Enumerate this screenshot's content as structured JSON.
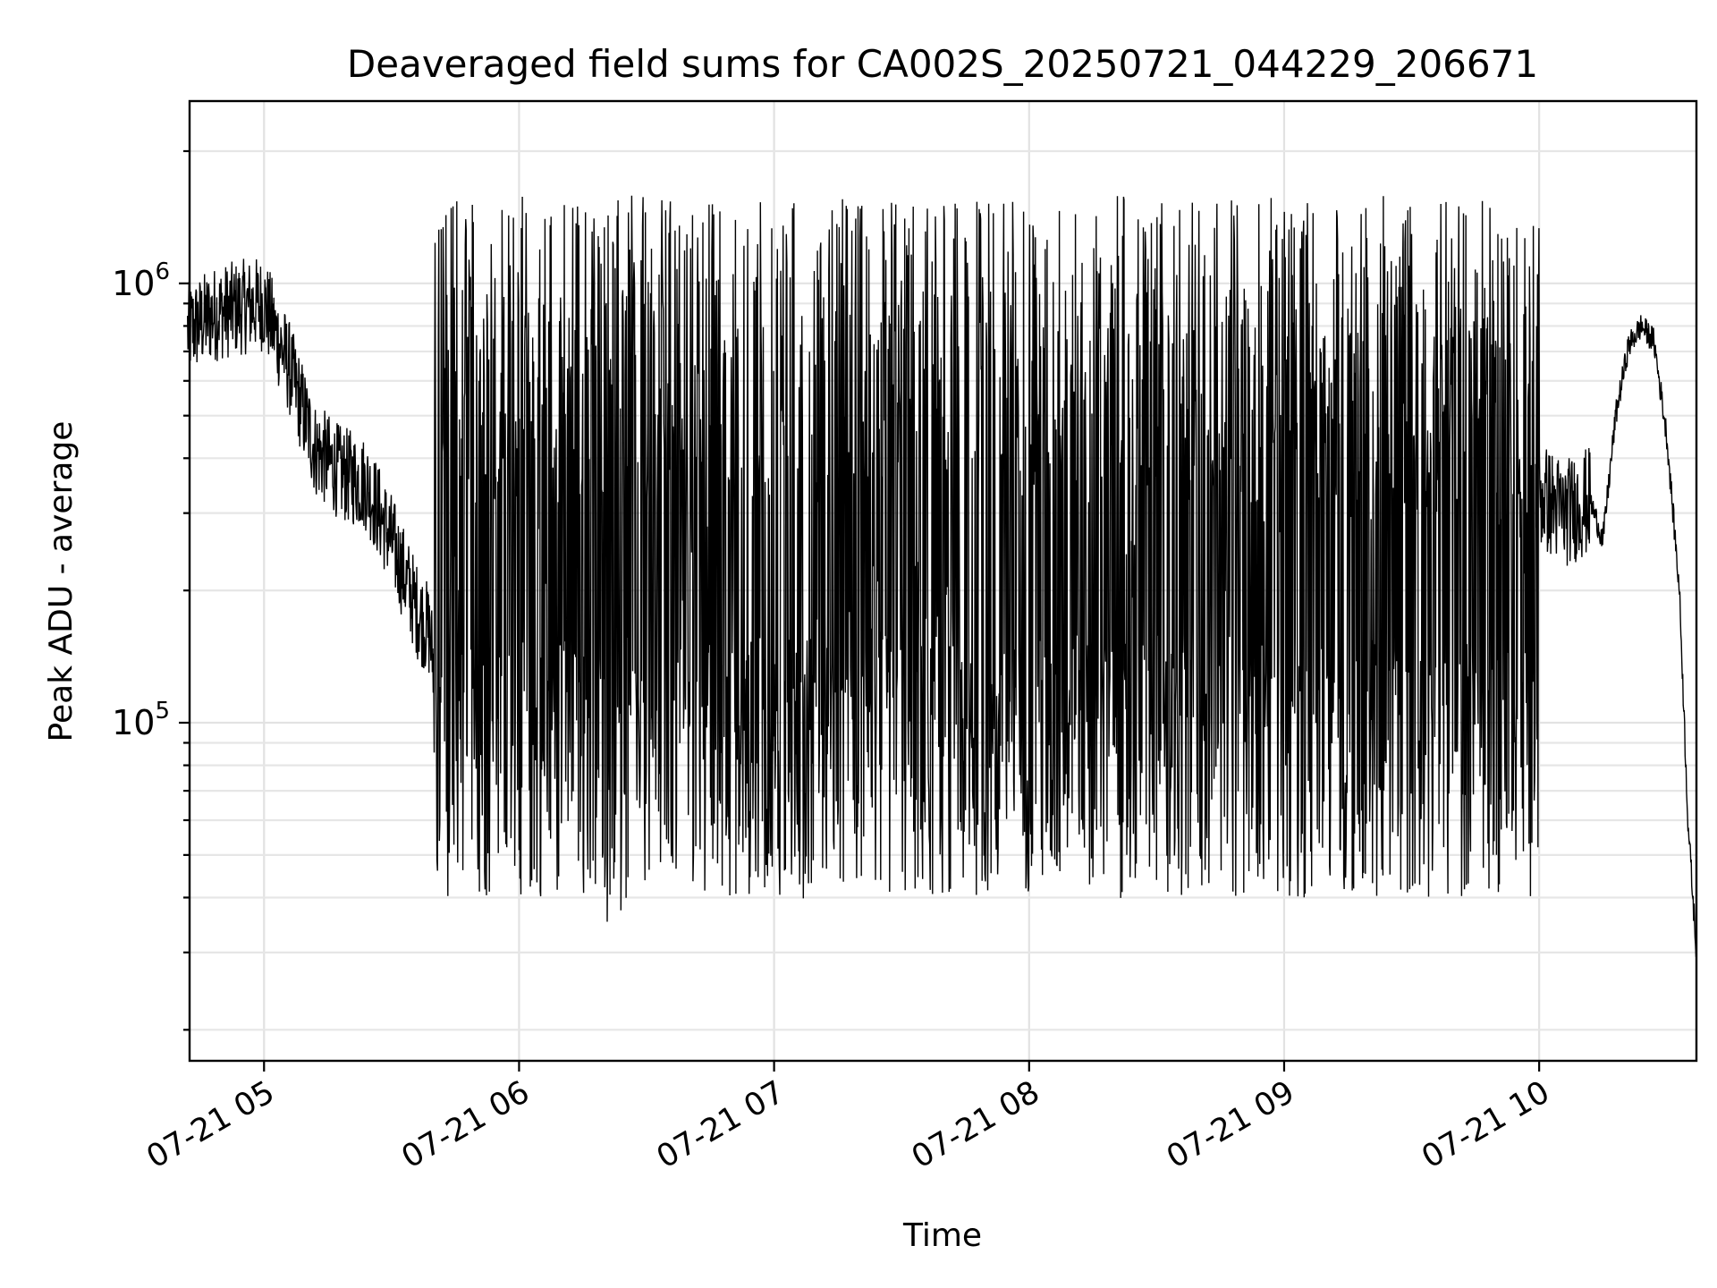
{
  "chart_data": {
    "type": "line",
    "title": "Deaveraged field sums for CA002S_20250721_044229_206671",
    "xlabel": "Time",
    "ylabel": "Peak ADU - average",
    "yscale": "log",
    "grid": true,
    "line_color": "#000000",
    "x_range": [
      "2025-07-21 04:42:29",
      "2025-07-21 10:37:00"
    ],
    "ylim": [
      17000,
      2600000
    ],
    "x_ticks": [
      {
        "label": "07-21 05",
        "time": "2025-07-21 05:00"
      },
      {
        "label": "07-21 06",
        "time": "2025-07-21 06:00"
      },
      {
        "label": "07-21 07",
        "time": "2025-07-21 07:00"
      },
      {
        "label": "07-21 08",
        "time": "2025-07-21 08:00"
      },
      {
        "label": "07-21 09",
        "time": "2025-07-21 09:00"
      },
      {
        "label": "07-21 10",
        "time": "2025-07-21 10:00"
      }
    ],
    "y_ticks": [
      {
        "base": "10",
        "exp": "5",
        "value": 100000
      },
      {
        "base": "10",
        "exp": "6",
        "value": 1000000
      }
    ],
    "series": [
      {
        "color": "#000000",
        "x": [
          "2025-07-21 04:42",
          "2025-07-21 04:48",
          "2025-07-21 04:54",
          "2025-07-21 05:00",
          "2025-07-21 05:06",
          "2025-07-21 05:12",
          "2025-07-21 05:18",
          "2025-07-21 05:24",
          "2025-07-21 05:30",
          "2025-07-21 05:36",
          "2025-07-21 05:39",
          "2025-07-21 05:42",
          "2025-07-21 05:48",
          "2025-07-21 05:54",
          "2025-07-21 06:00",
          "2025-07-21 06:06",
          "2025-07-21 06:12",
          "2025-07-21 06:18",
          "2025-07-21 06:24",
          "2025-07-21 06:30",
          "2025-07-21 06:36",
          "2025-07-21 06:42",
          "2025-07-21 06:48",
          "2025-07-21 06:54",
          "2025-07-21 07:00",
          "2025-07-21 07:06",
          "2025-07-21 07:12",
          "2025-07-21 07:18",
          "2025-07-21 07:24",
          "2025-07-21 07:30",
          "2025-07-21 07:36",
          "2025-07-21 07:42",
          "2025-07-21 07:48",
          "2025-07-21 07:54",
          "2025-07-21 08:00",
          "2025-07-21 08:06",
          "2025-07-21 08:12",
          "2025-07-21 08:18",
          "2025-07-21 08:24",
          "2025-07-21 08:30",
          "2025-07-21 08:36",
          "2025-07-21 08:42",
          "2025-07-21 08:48",
          "2025-07-21 08:54",
          "2025-07-21 09:00",
          "2025-07-21 09:06",
          "2025-07-21 09:12",
          "2025-07-21 09:18",
          "2025-07-21 09:24",
          "2025-07-21 09:30",
          "2025-07-21 09:36",
          "2025-07-21 09:42",
          "2025-07-21 09:48",
          "2025-07-21 09:54",
          "2025-07-21 10:00",
          "2025-07-21 10:06",
          "2025-07-21 10:12",
          "2025-07-21 10:15",
          "2025-07-21 10:18",
          "2025-07-21 10:21",
          "2025-07-21 10:24",
          "2025-07-21 10:27",
          "2025-07-21 10:30",
          "2025-07-21 10:33",
          "2025-07-21 10:35",
          "2025-07-21 10:37"
        ],
        "y": [
          780000,
          850000,
          880000,
          900000,
          640000,
          420000,
          370000,
          350000,
          260000,
          180000,
          160000,
          90000,
          500000,
          650000,
          400000,
          200000,
          80000,
          62000,
          58000,
          55000,
          70000,
          450000,
          320000,
          250000,
          150000,
          120000,
          110000,
          300000,
          220000,
          180000,
          140000,
          130000,
          120000,
          110000,
          95000,
          85000,
          82000,
          160000,
          170000,
          120000,
          180000,
          250000,
          350000,
          420000,
          450000,
          480000,
          430000,
          400000,
          380000,
          500000,
          520000,
          550000,
          480000,
          420000,
          330000,
          300000,
          320000,
          260000,
          500000,
          720000,
          800000,
          740000,
          450000,
          200000,
          60000,
          30000
        ]
      }
    ]
  }
}
